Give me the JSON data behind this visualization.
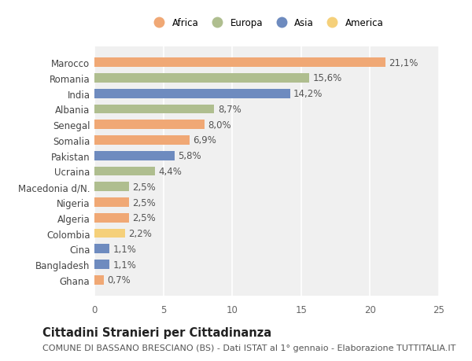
{
  "title": "Cittadini Stranieri per Cittadinanza",
  "subtitle": "COMUNE DI BASSANO BRESCIANO (BS) - Dati ISTAT al 1° gennaio - Elaborazione TUTTITALIA.IT",
  "countries": [
    "Marocco",
    "Romania",
    "India",
    "Albania",
    "Senegal",
    "Somalia",
    "Pakistan",
    "Ucraina",
    "Macedonia d/N.",
    "Nigeria",
    "Algeria",
    "Colombia",
    "Cina",
    "Bangladesh",
    "Ghana"
  ],
  "values": [
    21.1,
    15.6,
    14.2,
    8.7,
    8.0,
    6.9,
    5.8,
    4.4,
    2.5,
    2.5,
    2.5,
    2.2,
    1.1,
    1.1,
    0.7
  ],
  "continents": [
    "Africa",
    "Europa",
    "Asia",
    "Europa",
    "Africa",
    "Africa",
    "Asia",
    "Europa",
    "Europa",
    "Africa",
    "Africa",
    "America",
    "Asia",
    "Asia",
    "Africa"
  ],
  "continent_colors": {
    "Africa": "#F0A875",
    "Europa": "#AFBE8F",
    "Asia": "#6E8BBF",
    "America": "#F5D07A"
  },
  "legend_order": [
    "Africa",
    "Europa",
    "Asia",
    "America"
  ],
  "xlim": [
    0,
    25
  ],
  "xticks": [
    0,
    5,
    10,
    15,
    20,
    25
  ],
  "background_color": "#ffffff",
  "plot_bg_color": "#f0f0f0",
  "bar_height": 0.6,
  "label_fontsize": 8.5,
  "tick_fontsize": 8.5,
  "title_fontsize": 10.5,
  "subtitle_fontsize": 8.0
}
